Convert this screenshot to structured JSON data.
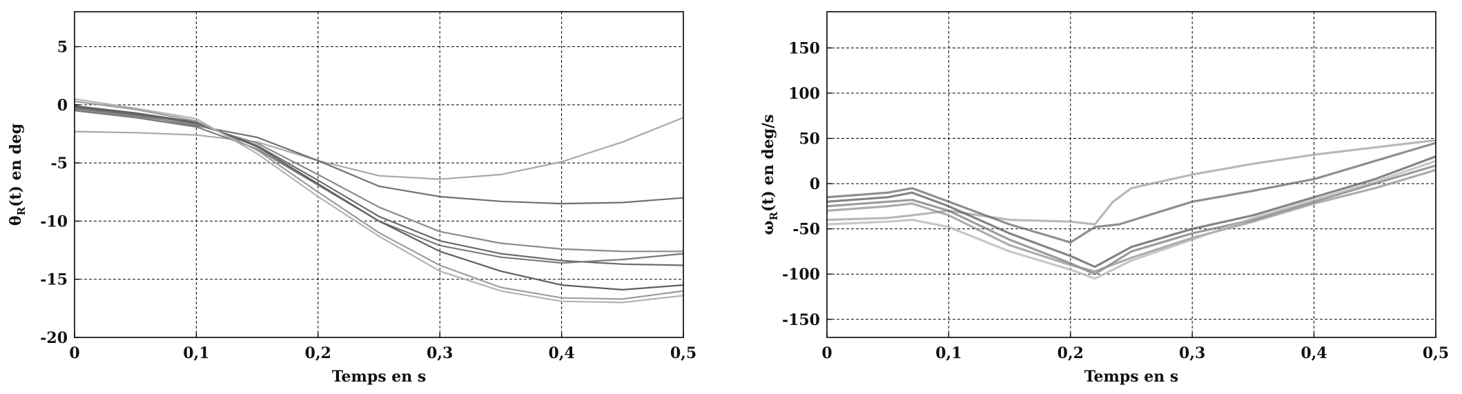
{
  "chart_data": [
    {
      "type": "line",
      "xlabel": "Temps en s",
      "ylabel": "θR(t) en deg",
      "ylabel_main": "θ",
      "ylabel_sub": "R",
      "ylabel_rest": "(t) en deg",
      "xlim": [
        0,
        0.5
      ],
      "ylim": [
        -20,
        8
      ],
      "grid": true,
      "xticks": [
        0,
        0.1,
        0.2,
        0.3,
        0.4,
        0.5
      ],
      "xtick_labels": [
        "0",
        "0,1",
        "0,2",
        "0,3",
        "0,4",
        "0,5"
      ],
      "yticks": [
        5,
        0,
        -5,
        -10,
        -15,
        -20
      ],
      "ytick_labels": [
        "5",
        "0",
        "-5",
        "-10",
        "-15",
        "-20"
      ],
      "series": [
        {
          "color": "#a8a8a8",
          "x": [
            0,
            0.05,
            0.1,
            0.15,
            0.2,
            0.25,
            0.3,
            0.35,
            0.4,
            0.45,
            0.5
          ],
          "y": [
            -2.3,
            -2.4,
            -2.6,
            -3.2,
            -4.8,
            -6.1,
            -6.4,
            -6.0,
            -4.9,
            -3.2,
            -1.1
          ]
        },
        {
          "color": "#707070",
          "x": [
            0,
            0.05,
            0.1,
            0.15,
            0.2,
            0.25,
            0.3,
            0.35,
            0.4,
            0.45,
            0.5
          ],
          "y": [
            -0.3,
            -0.9,
            -1.8,
            -2.8,
            -4.8,
            -7.0,
            -7.9,
            -8.3,
            -8.5,
            -8.4,
            -8.0
          ]
        },
        {
          "color": "#8a8a8a",
          "x": [
            0,
            0.05,
            0.1,
            0.15,
            0.2,
            0.25,
            0.3,
            0.35,
            0.4,
            0.45,
            0.5
          ],
          "y": [
            -0.4,
            -1.0,
            -1.7,
            -3.3,
            -6.0,
            -8.8,
            -10.9,
            -11.9,
            -12.4,
            -12.6,
            -12.6
          ]
        },
        {
          "color": "#6a6a6a",
          "x": [
            0,
            0.05,
            0.1,
            0.15,
            0.2,
            0.25,
            0.3,
            0.35,
            0.4,
            0.45,
            0.5
          ],
          "y": [
            -0.2,
            -0.8,
            -1.6,
            -3.5,
            -6.5,
            -9.6,
            -11.7,
            -12.8,
            -13.4,
            -13.7,
            -13.8
          ]
        },
        {
          "color": "#7a7a7a",
          "x": [
            0,
            0.05,
            0.1,
            0.15,
            0.2,
            0.25,
            0.3,
            0.35,
            0.4,
            0.45,
            0.5
          ],
          "y": [
            -0.5,
            -1.1,
            -1.9,
            -3.8,
            -6.9,
            -10.0,
            -12.1,
            -13.1,
            -13.6,
            -13.3,
            -12.8
          ]
        },
        {
          "color": "#5e5e5e",
          "x": [
            0,
            0.05,
            0.1,
            0.15,
            0.2,
            0.25,
            0.3,
            0.35,
            0.4,
            0.45,
            0.5
          ],
          "y": [
            -0.1,
            -0.7,
            -1.5,
            -3.6,
            -6.8,
            -10.0,
            -12.6,
            -14.3,
            -15.5,
            -15.9,
            -15.5
          ]
        },
        {
          "color": "#9c9c9c",
          "x": [
            0,
            0.05,
            0.1,
            0.15,
            0.2,
            0.25,
            0.3,
            0.35,
            0.4,
            0.45,
            0.5
          ],
          "y": [
            0.3,
            -0.4,
            -1.4,
            -3.9,
            -7.5,
            -11.0,
            -13.8,
            -15.7,
            -16.6,
            -16.7,
            -16.0
          ]
        },
        {
          "color": "#b2b2b2",
          "x": [
            0,
            0.05,
            0.1,
            0.15,
            0.2,
            0.25,
            0.3,
            0.35,
            0.4,
            0.45,
            0.5
          ],
          "y": [
            0.5,
            -0.3,
            -1.2,
            -4.2,
            -7.9,
            -11.3,
            -14.3,
            -16.0,
            -16.9,
            -17.0,
            -16.4
          ]
        }
      ]
    },
    {
      "type": "line",
      "xlabel": "Temps en s",
      "ylabel": "ωR(t) en deg/s",
      "ylabel_main": "ω",
      "ylabel_sub": "R",
      "ylabel_rest": "(t) en deg/s",
      "xlim": [
        0,
        0.5
      ],
      "ylim": [
        -170,
        190
      ],
      "grid": true,
      "xticks": [
        0,
        0.1,
        0.2,
        0.3,
        0.4,
        0.5
      ],
      "xtick_labels": [
        "0",
        "0,1",
        "0,2",
        "0,3",
        "0,4",
        "0,5"
      ],
      "yticks": [
        150,
        100,
        50,
        0,
        -50,
        -100,
        -150
      ],
      "ytick_labels": [
        "150",
        "100",
        "50",
        "0",
        "-50",
        "-100",
        "-150"
      ],
      "series": [
        {
          "color": "#a0a0a0",
          "x": [
            0,
            0.05,
            0.07,
            0.1,
            0.15,
            0.2,
            0.22,
            0.235,
            0.25,
            0.3,
            0.35,
            0.4,
            0.45,
            0.5
          ],
          "y": [
            -40,
            -38,
            -35,
            -30,
            -40,
            -42,
            -45,
            -20,
            -5,
            10,
            22,
            32,
            40,
            48
          ]
        },
        {
          "color": "#686868",
          "x": [
            0,
            0.05,
            0.07,
            0.1,
            0.15,
            0.2,
            0.22,
            0.24,
            0.3,
            0.35,
            0.4,
            0.45,
            0.5
          ],
          "y": [
            -15,
            -10,
            -5,
            -20,
            -45,
            -65,
            -48,
            -45,
            -20,
            -8,
            5,
            25,
            45
          ]
        },
        {
          "color": "#5a5a5a",
          "x": [
            0,
            0.05,
            0.07,
            0.1,
            0.15,
            0.2,
            0.22,
            0.25,
            0.3,
            0.35,
            0.4,
            0.45,
            0.5
          ],
          "y": [
            -20,
            -15,
            -10,
            -25,
            -55,
            -80,
            -92,
            -70,
            -50,
            -35,
            -15,
            5,
            30
          ]
        },
        {
          "color": "#7a7a7a",
          "x": [
            0,
            0.05,
            0.07,
            0.1,
            0.15,
            0.2,
            0.22,
            0.25,
            0.3,
            0.35,
            0.4,
            0.45,
            0.5
          ],
          "y": [
            -25,
            -20,
            -18,
            -30,
            -62,
            -88,
            -100,
            -75,
            -55,
            -40,
            -20,
            0,
            20
          ]
        },
        {
          "color": "#909090",
          "x": [
            0,
            0.05,
            0.07,
            0.1,
            0.15,
            0.2,
            0.22,
            0.25,
            0.3,
            0.35,
            0.4,
            0.45,
            0.5
          ],
          "y": [
            -30,
            -25,
            -22,
            -35,
            -68,
            -90,
            -97,
            -82,
            -60,
            -42,
            -22,
            -5,
            15
          ]
        },
        {
          "color": "#b4b4b4",
          "x": [
            0,
            0.05,
            0.07,
            0.1,
            0.15,
            0.2,
            0.22,
            0.25,
            0.3,
            0.35,
            0.4,
            0.45,
            0.5
          ],
          "y": [
            -45,
            -42,
            -40,
            -48,
            -75,
            -95,
            -105,
            -85,
            -62,
            -38,
            -18,
            2,
            25
          ]
        }
      ]
    }
  ]
}
